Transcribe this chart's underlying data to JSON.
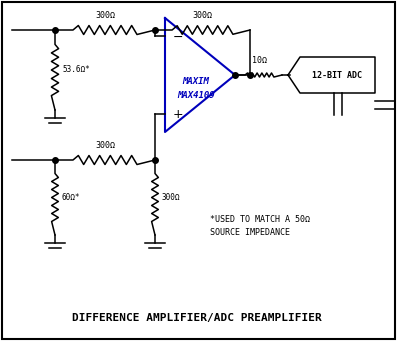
{
  "title": "DIFFERENCE AMPLIFIER/ADC PREAMPLIFIER",
  "note_line1": "*USED TO MATCH A 50Ω",
  "note_line2": "SOURCE IMPEDANCE",
  "r1_label": "300Ω",
  "r2_label": "300Ω",
  "r3_label": "53.6Ω*",
  "r4_label": "300Ω",
  "r5_label": "60Ω*",
  "r6_label": "300Ω",
  "r7_label": "10Ω",
  "maxim_line1": "MAXIM",
  "maxim_line2": "MAX4109",
  "adc_label": "12-BIT ADC",
  "bg_color": "#ffffff",
  "line_color": "#000000",
  "blue_color": "#0000bb",
  "title_color": "#000000",
  "border_color": "#000000"
}
